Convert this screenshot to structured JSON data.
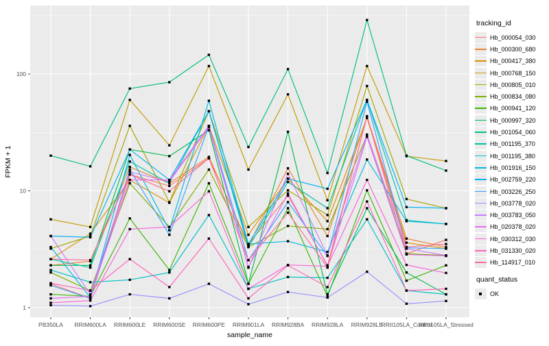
{
  "chart_data": {
    "type": "line",
    "xlabel": "sample_name",
    "ylabel": "FPKM + 1",
    "y_scale": "log10",
    "y_ticks": [
      1,
      10,
      100
    ],
    "y_tick_labels": [
      "1",
      "10",
      "100"
    ],
    "ylim": [
      0.93,
      380
    ],
    "grid": "on",
    "panel_bg": "#ebebeb",
    "grid_color": "#ffffff",
    "point_shape": "square",
    "point_color": "#000000",
    "legend_position": "right",
    "legend_title": "tracking_id",
    "quant_legend_title": "quant_status",
    "quant_legend_value": "OK",
    "categories": [
      "PB350LA",
      "RRIM600LA",
      "RRIM600LE",
      "RRIM600SE",
      "RRIM600PE",
      "RRIM901LA",
      "RRIM928BA",
      "RRIM928LA",
      "RRIM928LE",
      "RRII105LA_Control",
      "RRII105LA_Stressed"
    ],
    "series": [
      {
        "name": "Hb_000054_030",
        "color": "#F8766D",
        "values": [
          1.6,
          1.2,
          13.8,
          11.0,
          19.0,
          3.5,
          9.1,
          2.3,
          43.0,
          2.9,
          3.8
        ]
      },
      {
        "name": "Hb_000300_680",
        "color": "#EA8331",
        "values": [
          2.3,
          2.5,
          16.0,
          11.6,
          19.5,
          3.4,
          15.6,
          4.1,
          43.0,
          3.9,
          3.3
        ]
      },
      {
        "name": "Hb_000417_380",
        "color": "#D89000",
        "values": [
          2.6,
          4.3,
          12.4,
          7.9,
          36.0,
          4.2,
          12.7,
          5.5,
          42.0,
          3.6,
          3.2
        ]
      },
      {
        "name": "Hb_000768_150",
        "color": "#C09B00",
        "values": [
          5.7,
          4.9,
          60.0,
          24.5,
          117.0,
          15.2,
          67.0,
          8.3,
          117.0,
          19.8,
          18.0
        ]
      },
      {
        "name": "Hb_000805_010",
        "color": "#A3A500",
        "values": [
          3.2,
          4.1,
          36.0,
          8.0,
          48.0,
          4.9,
          10.1,
          6.2,
          79.0,
          8.5,
          7.1
        ]
      },
      {
        "name": "Hb_000834_080",
        "color": "#7CAE00",
        "values": [
          2.0,
          1.4,
          11.6,
          4.9,
          15.2,
          3.3,
          5.0,
          4.7,
          30.0,
          2.9,
          2.8
        ]
      },
      {
        "name": "Hb_000941_120",
        "color": "#39B600",
        "values": [
          1.3,
          1.25,
          5.8,
          2.1,
          11.6,
          1.6,
          7.1,
          1.25,
          10.1,
          1.7,
          2.3
        ]
      },
      {
        "name": "Hb_000997_320",
        "color": "#00BB4E",
        "values": [
          2.3,
          2.3,
          22.6,
          19.8,
          33.0,
          1.6,
          32.0,
          1.3,
          7.1,
          2.0,
          1.3
        ]
      },
      {
        "name": "Hb_001054_060",
        "color": "#00BF7D",
        "values": [
          20.0,
          16.2,
          75.0,
          85.0,
          146.0,
          23.7,
          110.0,
          14.2,
          290.0,
          20.0,
          14.9
        ]
      },
      {
        "name": "Hb_001195_370",
        "color": "#00C1A3",
        "values": [
          2.6,
          2.2,
          17.8,
          11.6,
          48.0,
          3.3,
          11.9,
          7.1,
          60.0,
          5.6,
          5.2
        ]
      },
      {
        "name": "Hb_001195_380",
        "color": "#00BFC4",
        "values": [
          2.1,
          1.65,
          1.73,
          2.0,
          6.2,
          1.45,
          1.83,
          1.8,
          5.7,
          1.4,
          1.3
        ]
      },
      {
        "name": "Hb_001916_150",
        "color": "#00BAE0",
        "values": [
          3.3,
          1.22,
          20.3,
          4.6,
          59.0,
          3.5,
          3.7,
          3.0,
          18.5,
          5.5,
          5.2
        ]
      },
      {
        "name": "Hb_002759_220",
        "color": "#00B0F6",
        "values": [
          4.1,
          4.0,
          22.6,
          12.4,
          48.0,
          3.5,
          12.7,
          10.4,
          60.0,
          7.25,
          7.1
        ]
      },
      {
        "name": "Hb_003226_250",
        "color": "#35A2FF",
        "values": [
          1.55,
          1.2,
          15.2,
          4.2,
          36.0,
          2.55,
          8.0,
          2.77,
          58.0,
          3.25,
          3.2
        ]
      },
      {
        "name": "Hb_003778_020",
        "color": "#9590FF",
        "values": [
          1.05,
          1.03,
          1.3,
          1.2,
          1.6,
          1.07,
          1.36,
          1.22,
          2.03,
          1.08,
          1.14
        ]
      },
      {
        "name": "Hb_003783_050",
        "color": "#C77CFF",
        "values": [
          4.1,
          1.3,
          14.5,
          12.0,
          35.0,
          2.2,
          14.0,
          2.8,
          30.3,
          3.2,
          2.8
        ]
      },
      {
        "name": "Hb_020378_020",
        "color": "#E76BF3",
        "values": [
          1.2,
          1.25,
          12.4,
          12.4,
          36.0,
          2.23,
          9.5,
          2.26,
          29.0,
          2.85,
          2.77
        ]
      },
      {
        "name": "Hb_030312_030",
        "color": "#FA62DB",
        "values": [
          1.1,
          1.15,
          4.7,
          4.9,
          9.9,
          1.45,
          2.32,
          2.26,
          12.4,
          2.32,
          1.98
        ]
      },
      {
        "name": "Hb_031330_020",
        "color": "#FF62BC",
        "values": [
          1.62,
          1.4,
          2.6,
          1.5,
          3.9,
          1.2,
          2.3,
          1.5,
          8.1,
          1.4,
          1.45
        ]
      },
      {
        "name": "Hb_114917_010",
        "color": "#FF6A98",
        "values": [
          2.6,
          2.55,
          13.8,
          9.9,
          19.0,
          2.55,
          6.5,
          2.2,
          43.5,
          3.3,
          3.5
        ]
      }
    ]
  }
}
